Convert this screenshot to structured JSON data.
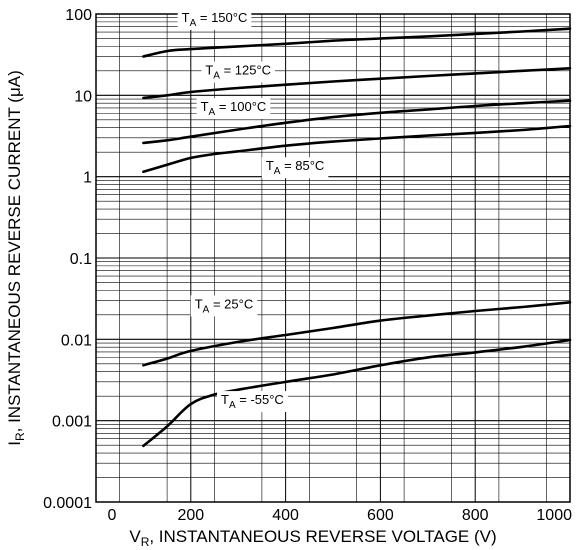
{
  "chart_data": {
    "type": "line",
    "xlabel": {
      "main": "V",
      "sub": "R",
      "rest": ", INSTANTANEOUS REVERSE VOLTAGE (V)"
    },
    "ylabel": {
      "main": "I",
      "sub": "R",
      "rest": ", INSTANTANEOUS REVERSE CURRENT (μA)"
    },
    "xlim": [
      0,
      1000
    ],
    "ylim": [
      0.0001,
      100
    ],
    "yscale": "log",
    "grid": true,
    "x_ticks": [
      {
        "value": 0,
        "label": "0"
      },
      {
        "value": 200,
        "label": "200"
      },
      {
        "value": 400,
        "label": "400"
      },
      {
        "value": 600,
        "label": "600"
      },
      {
        "value": 800,
        "label": "800"
      },
      {
        "value": 1000,
        "label": "1000"
      }
    ],
    "y_ticks": [
      {
        "value": 100,
        "label": "100"
      },
      {
        "value": 10,
        "label": "10"
      },
      {
        "value": 1,
        "label": "1"
      },
      {
        "value": 0.1,
        "label": "0.1"
      },
      {
        "value": 0.01,
        "label": "0.01"
      },
      {
        "value": 0.001,
        "label": "0.001"
      },
      {
        "value": 0.0001,
        "label": "0.0001"
      }
    ],
    "series": [
      {
        "label": {
          "pre": "T",
          "sub": "A",
          "post": " = 150°C"
        },
        "label_at": [
          250,
          80
        ],
        "x": [
          100,
          150,
          200,
          300,
          400,
          500,
          600,
          700,
          800,
          900,
          1000
        ],
        "y": [
          30,
          35,
          37,
          40,
          43,
          47,
          50,
          53,
          57,
          61,
          66
        ]
      },
      {
        "label": {
          "pre": "T",
          "sub": "A",
          "post": " = 125°C"
        },
        "label_at": [
          300,
          18
        ],
        "x": [
          100,
          150,
          200,
          300,
          400,
          500,
          600,
          700,
          800,
          900,
          1000
        ],
        "y": [
          9.3,
          10,
          11,
          12.3,
          13.5,
          14.8,
          16,
          17.3,
          18.6,
          20,
          21.5
        ]
      },
      {
        "label": {
          "pre": "T",
          "sub": "A",
          "post": " = 100°C"
        },
        "label_at": [
          290,
          6.4
        ],
        "x": [
          100,
          150,
          200,
          300,
          400,
          500,
          600,
          700,
          800,
          900,
          1000
        ],
        "y": [
          2.6,
          2.8,
          3.1,
          3.8,
          4.6,
          5.4,
          6.1,
          6.7,
          7.4,
          8,
          8.6
        ]
      },
      {
        "label": {
          "pre": "T",
          "sub": "A",
          "post": " = 85°C"
        },
        "label_at": [
          420,
          1.2
        ],
        "x": [
          100,
          150,
          200,
          250,
          300,
          400,
          500,
          600,
          700,
          800,
          900,
          1000
        ],
        "y": [
          1.15,
          1.4,
          1.7,
          1.9,
          2.05,
          2.4,
          2.7,
          2.95,
          3.2,
          3.45,
          3.75,
          4.2
        ]
      },
      {
        "label": {
          "pre": "T",
          "sub": "A",
          "post": " = 25°C"
        },
        "label_at": [
          270,
          0.024
        ],
        "x": [
          100,
          150,
          200,
          300,
          400,
          500,
          600,
          700,
          800,
          900,
          1000
        ],
        "y": [
          0.0048,
          0.0058,
          0.0072,
          0.0093,
          0.0113,
          0.0138,
          0.017,
          0.0196,
          0.0223,
          0.025,
          0.0285
        ]
      },
      {
        "label": {
          "pre": "T",
          "sub": "A",
          "post": " = -55°C"
        },
        "label_at": [
          330,
          0.0016
        ],
        "x": [
          100,
          150,
          200,
          250,
          300,
          400,
          500,
          600,
          700,
          800,
          900,
          1000
        ],
        "y": [
          0.00049,
          0.00085,
          0.0016,
          0.0021,
          0.0024,
          0.003,
          0.0037,
          0.0048,
          0.006,
          0.0069,
          0.0081,
          0.0098
        ]
      }
    ]
  }
}
